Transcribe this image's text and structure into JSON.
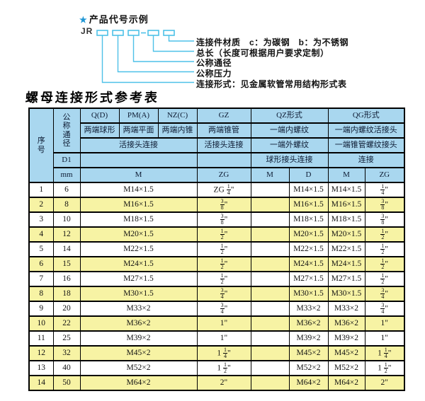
{
  "colors": {
    "header_bg": "#a9d7ef",
    "row_alt_yellow": "#f7f3a4",
    "diagram_cyan": "#4ec1e8",
    "star_blue": "#1f96d4"
  },
  "diagram": {
    "star": "★",
    "title": "产品代号示例",
    "code_prefix": "JR",
    "labels": [
      "连接件材质　c：为碳钢　b：为不锈钢",
      "总长（长度可根据用户要求定制）",
      "公称通径",
      "公称压力",
      "连接形式：见金属软管常用结构形式表"
    ]
  },
  "table": {
    "title": "螺母连接形式参考表",
    "header": {
      "seq": "序\n号",
      "dn": "公\n称\n通\n径",
      "d1": "D1",
      "mm": "mm",
      "g_qd": "Q(D)",
      "g_pm": "PM(A)",
      "g_nz": "NZ(C)",
      "g_gz": "GZ",
      "g_qz": "QZ形式",
      "g_qg": "QG形式",
      "qd2": "两端球形",
      "pm2": "两端平面",
      "nz2": "两端内锥",
      "gz2": "两端锥管",
      "qz2": "一端内螺纹",
      "qg2": "一端内螺纹活接头",
      "m3": "活接头连接",
      "gz3": "活接头连接",
      "qz3": "一端外螺纹",
      "qg3": "一端锥管螺纹接头",
      "qz4": "球形接头连接",
      "qg4": "连接",
      "u_m": "M",
      "u_zg": "ZG",
      "u_qz_m": "M",
      "u_qz_d": "D",
      "u_qg_m": "M",
      "u_qg_zg": "ZG"
    },
    "rows": [
      {
        "no": "1",
        "dn": "6",
        "m": "M14×1.5",
        "zg": "ZG 1/4\"",
        "qz_m": "",
        "qz_d": "M14×1.5",
        "qg_m": "M14×1.5",
        "qg_zg": "1/4\""
      },
      {
        "no": "2",
        "dn": "8",
        "m": "M16×1.5",
        "zg": "3/8\"",
        "qz_m": "",
        "qz_d": "M16×1.5",
        "qg_m": "M16×1.5",
        "qg_zg": "3/8\""
      },
      {
        "no": "3",
        "dn": "10",
        "m": "M18×1.5",
        "zg": "3/8\"",
        "qz_m": "",
        "qz_d": "M18×1.5",
        "qg_m": "M18×1.5",
        "qg_zg": "3/8\""
      },
      {
        "no": "4",
        "dn": "12",
        "m": "M20×1.5",
        "zg": "1/2\"",
        "qz_m": "",
        "qz_d": "M20×1.5",
        "qg_m": "M20×1.5",
        "qg_zg": "1/2\""
      },
      {
        "no": "5",
        "dn": "14",
        "m": "M22×1.5",
        "zg": "1/2\"",
        "qz_m": "",
        "qz_d": "M22×1.5",
        "qg_m": "M22×1.5",
        "qg_zg": "1/2\""
      },
      {
        "no": "6",
        "dn": "15",
        "m": "M24×1.5",
        "zg": "1/2\"",
        "qz_m": "",
        "qz_d": "M24×1.5",
        "qg_m": "M24×1.5",
        "qg_zg": "1/2\""
      },
      {
        "no": "7",
        "dn": "16",
        "m": "M27×1.5",
        "zg": "1/2\"",
        "qz_m": "",
        "qz_d": "M27×1.5",
        "qg_m": "M27×1.5",
        "qg_zg": "1/2\""
      },
      {
        "no": "8",
        "dn": "18",
        "m": "M30×1.5",
        "zg": "3/4\"",
        "qz_m": "",
        "qz_d": "M30×1.5",
        "qg_m": "M30×1.5",
        "qg_zg": "3/4\""
      },
      {
        "no": "9",
        "dn": "20",
        "m": "M33×2",
        "zg": "3/4\"",
        "qz_m": "",
        "qz_d": "M33×2",
        "qg_m": "M33×2",
        "qg_zg": "3/4\""
      },
      {
        "no": "10",
        "dn": "22",
        "m": "M36×2",
        "zg": "1\"",
        "qz_m": "",
        "qz_d": "M36×2",
        "qg_m": "M36×2",
        "qg_zg": "1\""
      },
      {
        "no": "11",
        "dn": "25",
        "m": "M39×2",
        "zg": "1\"",
        "qz_m": "",
        "qz_d": "M39×2",
        "qg_m": "M39×2",
        "qg_zg": "1\""
      },
      {
        "no": "12",
        "dn": "32",
        "m": "M45×2",
        "zg": "1 1/4\"",
        "qz_m": "",
        "qz_d": "M45×2",
        "qg_m": "M45×2",
        "qg_zg": "1 1/4\""
      },
      {
        "no": "13",
        "dn": "40",
        "m": "M52×2",
        "zg": "1 1/2\"",
        "qz_m": "",
        "qz_d": "M52×2",
        "qg_m": "M52×2",
        "qg_zg": "1 1/2\""
      },
      {
        "no": "14",
        "dn": "50",
        "m": "M64×2",
        "zg": "2\"",
        "qz_m": "",
        "qz_d": "M64×2",
        "qg_m": "M64×2",
        "qg_zg": "2\""
      }
    ]
  }
}
